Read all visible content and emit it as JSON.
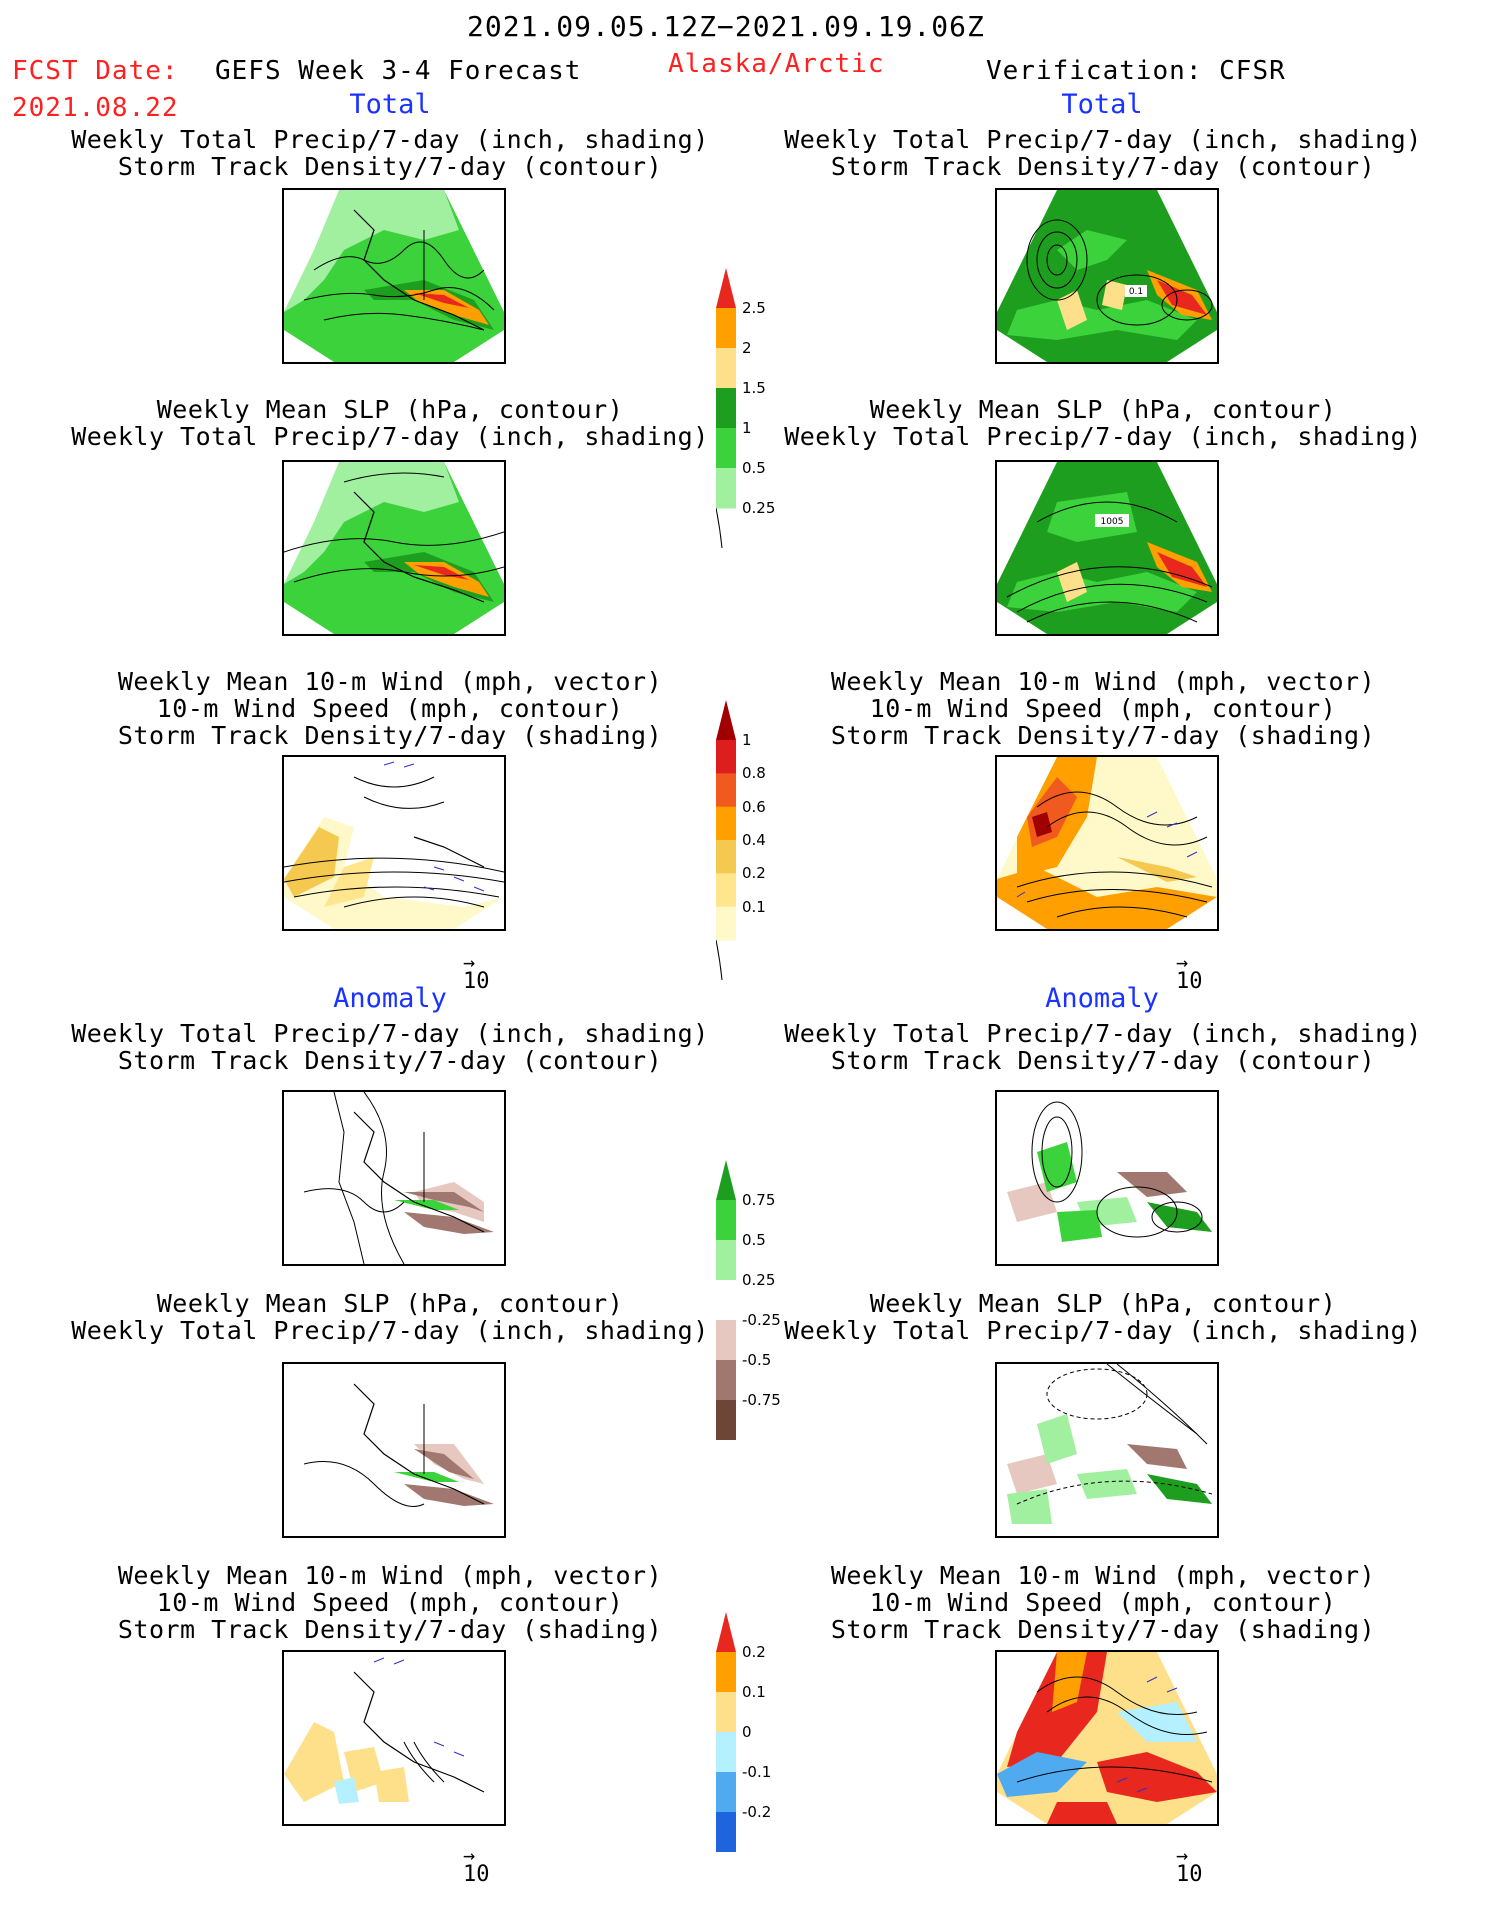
{
  "header": {
    "period": "2021.09.05.12Z−2021.09.19.06Z",
    "fcst_label": "FCST Date:",
    "fcst_date": "2021.08.22",
    "product": "GEFS Week 3-4 Forecast",
    "region": "Alaska/Arctic",
    "verification": "Verification: CFSR"
  },
  "sections": {
    "total_left": "Total",
    "total_right": "Total",
    "anomaly_left": "Anomaly",
    "anomaly_right": "Anomaly"
  },
  "titles": {
    "precip_storm": [
      "Weekly Total Precip/7-day (inch, shading)",
      "Storm Track Density/7-day (contour)"
    ],
    "slp_precip": [
      "Weekly Mean SLP (hPa, contour)",
      "Weekly Total Precip/7-day (inch, shading)"
    ],
    "wind_storm": [
      "Weekly Mean 10-m Wind (mph, vector)",
      "10-m Wind Speed (mph, contour)",
      "Storm Track Density/7-day (shading)"
    ]
  },
  "vector_reference": "10",
  "map_labels": {
    "total_precip_storm_right": "0.1",
    "total_slp_right": "1005"
  },
  "colorbars": {
    "precip_total": {
      "labels": [
        "2.5",
        "2",
        "1.5",
        "1",
        "0.5",
        "0.25"
      ],
      "colors": [
        "#e8281e",
        "#ffa000",
        "#ffe08a",
        "#1e9e1e",
        "#3cd23c",
        "#a0f0a0"
      ]
    },
    "storm_total": {
      "labels": [
        "1",
        "0.8",
        "0.6",
        "0.4",
        "0.2",
        "0.1"
      ],
      "colors": [
        "#a00000",
        "#dc1e1e",
        "#f05a1e",
        "#ffa000",
        "#f5c850",
        "#ffe68c",
        "#fff8c8"
      ]
    },
    "precip_anom": {
      "labels": [
        "0.75",
        "0.5",
        "0.25",
        "-0.25",
        "-0.5",
        "-0.75"
      ],
      "colors": [
        "#1e9e1e",
        "#3cd23c",
        "#a0f0a0",
        "#ffffff",
        "#e6c8c0",
        "#a07870",
        "#6e4638"
      ]
    },
    "storm_anom": {
      "labels": [
        "0.2",
        "0.1",
        "0",
        "-0.1",
        "-0.2"
      ],
      "colors": [
        "#e8281e",
        "#ffa000",
        "#ffe08a",
        "#b4f0ff",
        "#50aaf0",
        "#1e64dc"
      ]
    }
  }
}
